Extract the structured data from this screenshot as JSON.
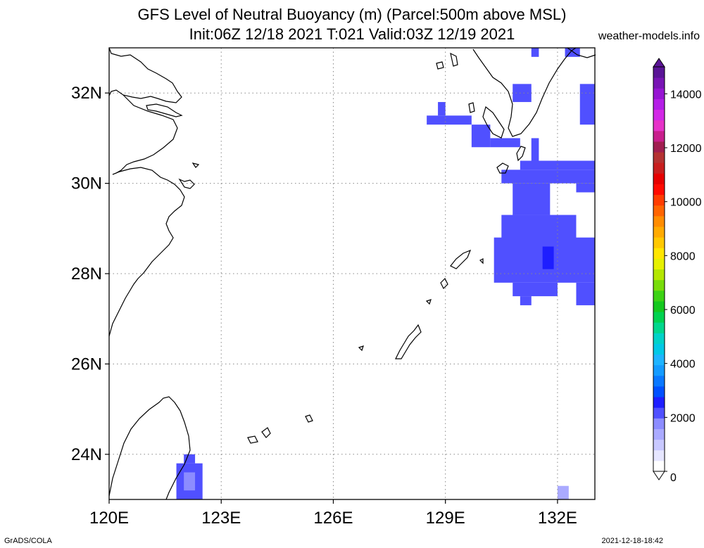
{
  "title_line1": "GFS Level of Neutral Buoyancy (m) (Parcel:500m above MSL)",
  "title_line2": "Init:06Z 12/18 2021 T:021 Valid:03Z 12/19 2021",
  "site": "weather-models.info",
  "footer_left": "GrADS/COLA",
  "footer_right": "2021-12-18-18:42",
  "map": {
    "lon_range": [
      120,
      133
    ],
    "lat_range": [
      23,
      33
    ],
    "lon_ticks": [
      {
        "value": 120,
        "label": "120E"
      },
      {
        "value": 123,
        "label": "123E"
      },
      {
        "value": 126,
        "label": "126E"
      },
      {
        "value": 129,
        "label": "129E"
      },
      {
        "value": 132,
        "label": "132E"
      }
    ],
    "lat_ticks": [
      {
        "value": 32,
        "label": "32N"
      },
      {
        "value": 30,
        "label": "30N"
      },
      {
        "value": 28,
        "label": "28N"
      },
      {
        "value": 26,
        "label": "26N"
      },
      {
        "value": 24,
        "label": "24N"
      }
    ]
  },
  "colorbar": {
    "min": 0,
    "max": 15000,
    "ticks": [
      {
        "value": 0,
        "label": "0"
      },
      {
        "value": 2000,
        "label": "2000"
      },
      {
        "value": 4000,
        "label": "4000"
      },
      {
        "value": 6000,
        "label": "6000"
      },
      {
        "value": 8000,
        "label": "8000"
      },
      {
        "value": 10000,
        "label": "10000"
      },
      {
        "value": 12000,
        "label": "12000"
      },
      {
        "value": 14000,
        "label": "14000"
      }
    ],
    "colors": [
      "#ffffff",
      "#e6e6ff",
      "#c8c8ff",
      "#aaaaff",
      "#8c8cff",
      "#5050ff",
      "#1e1eff",
      "#0050ff",
      "#0a78ff",
      "#149bff",
      "#1eb4ff",
      "#00c8e6",
      "#00d2c8",
      "#00d78c",
      "#00d250",
      "#14c81e",
      "#3cd214",
      "#78dc0a",
      "#b4e600",
      "#e6f000",
      "#ffe600",
      "#ffc800",
      "#ffaa00",
      "#ff8c00",
      "#ff6400",
      "#ff3c00",
      "#ff0a00",
      "#e60000",
      "#c81e1e",
      "#b43232",
      "#a01e50",
      "#c81e8c",
      "#e632c8",
      "#d228e6",
      "#b41ee6",
      "#9614d2",
      "#7814b4",
      "#5a1496"
    ]
  },
  "lnb_cells": [
    {
      "lon_min": 131.3,
      "lon_max": 131.5,
      "lat_min": 32.8,
      "lat_max": 33.0,
      "lnb": 2200
    },
    {
      "lon_min": 132.2,
      "lon_max": 132.6,
      "lat_min": 32.8,
      "lat_max": 33.0,
      "lnb": 2200
    },
    {
      "lon_min": 130.8,
      "lon_max": 131.3,
      "lat_min": 31.8,
      "lat_max": 32.2,
      "lnb": 2200
    },
    {
      "lon_min": 132.6,
      "lon_max": 133.0,
      "lat_min": 31.3,
      "lat_max": 32.2,
      "lnb": 2200
    },
    {
      "lon_min": 128.5,
      "lon_max": 129.7,
      "lat_min": 31.3,
      "lat_max": 31.5,
      "lnb": 2200
    },
    {
      "lon_min": 128.8,
      "lon_max": 129.0,
      "lat_min": 31.5,
      "lat_max": 31.8,
      "lnb": 2200
    },
    {
      "lon_min": 129.7,
      "lon_max": 130.2,
      "lat_min": 30.8,
      "lat_max": 31.3,
      "lnb": 2200
    },
    {
      "lon_min": 130.2,
      "lon_max": 131.0,
      "lat_min": 30.8,
      "lat_max": 31.0,
      "lnb": 2200
    },
    {
      "lon_min": 130.5,
      "lon_max": 133.0,
      "lat_min": 30.0,
      "lat_max": 30.3,
      "lnb": 2200
    },
    {
      "lon_min": 131.0,
      "lon_max": 133.0,
      "lat_min": 30.3,
      "lat_max": 30.5,
      "lnb": 2200
    },
    {
      "lon_min": 131.3,
      "lon_max": 131.5,
      "lat_min": 30.5,
      "lat_max": 31.0,
      "lnb": 2200
    },
    {
      "lon_min": 132.5,
      "lon_max": 133.0,
      "lat_min": 29.8,
      "lat_max": 30.0,
      "lnb": 2200
    },
    {
      "lon_min": 130.8,
      "lon_max": 131.8,
      "lat_min": 29.3,
      "lat_max": 30.0,
      "lnb": 2200
    },
    {
      "lon_min": 130.5,
      "lon_max": 132.5,
      "lat_min": 28.5,
      "lat_max": 29.3,
      "lnb": 2200
    },
    {
      "lon_min": 130.3,
      "lon_max": 133.0,
      "lat_min": 27.8,
      "lat_max": 28.8,
      "lnb": 2200
    },
    {
      "lon_min": 130.8,
      "lon_max": 132.0,
      "lat_min": 27.5,
      "lat_max": 27.8,
      "lnb": 2200
    },
    {
      "lon_min": 131.0,
      "lon_max": 131.3,
      "lat_min": 27.3,
      "lat_max": 27.5,
      "lnb": 2200
    },
    {
      "lon_min": 132.5,
      "lon_max": 133.0,
      "lat_min": 27.3,
      "lat_max": 27.8,
      "lnb": 2200
    },
    {
      "lon_min": 121.8,
      "lon_max": 122.5,
      "lat_min": 23.0,
      "lat_max": 23.8,
      "lnb": 2200
    },
    {
      "lon_min": 122.0,
      "lon_max": 122.3,
      "lat_min": 23.8,
      "lat_max": 24.0,
      "lnb": 2200
    },
    {
      "lon_min": 132.0,
      "lon_max": 132.3,
      "lat_min": 23.0,
      "lat_max": 23.3,
      "lnb": 1400
    },
    {
      "lon_min": 131.6,
      "lon_max": 131.9,
      "lat_min": 28.1,
      "lat_max": 28.6,
      "lnb": 2600
    },
    {
      "lon_min": 122.0,
      "lon_max": 122.3,
      "lat_min": 23.2,
      "lat_max": 23.6,
      "lnb": 1700
    }
  ]
}
